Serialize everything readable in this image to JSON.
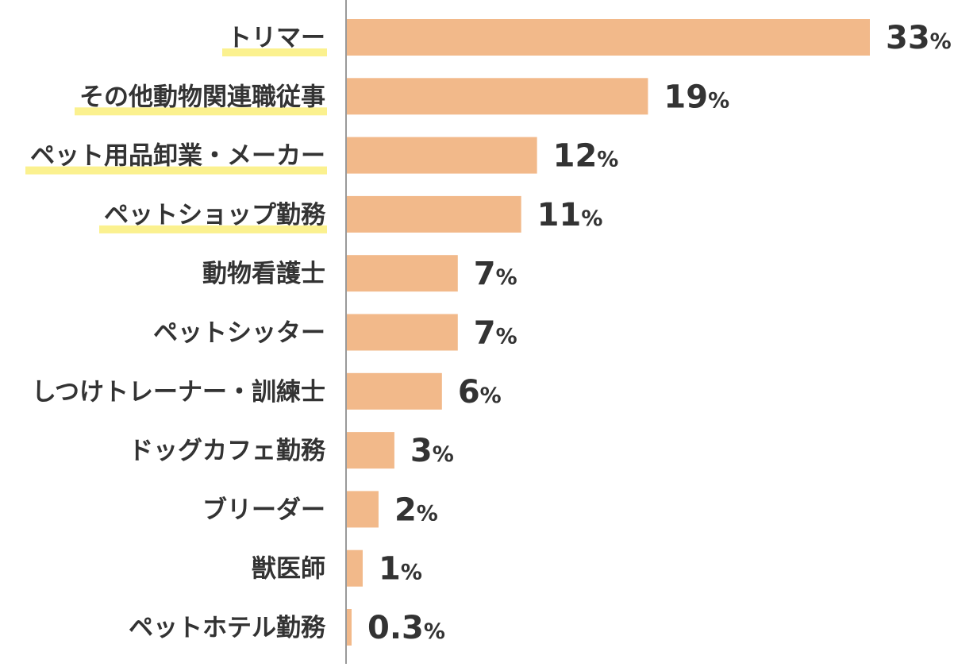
{
  "chart_data": {
    "type": "bar",
    "orientation": "horizontal",
    "categories": [
      "トリマー",
      "その他動物関連職従事",
      "ペット用品卸業・メーカー",
      "ペットショップ勤務",
      "動物看護士",
      "ペットシッター",
      "しつけトレーナー・訓練士",
      "ドッグカフェ勤務",
      "ブリーダー",
      "獣医師",
      "ペットホテル勤務"
    ],
    "values": [
      33,
      19,
      12,
      11,
      7,
      7,
      6,
      3,
      2,
      1,
      0.3
    ],
    "value_labels": [
      "33",
      "19",
      "12",
      "11",
      "7",
      "7",
      "6",
      "3",
      "2",
      "1",
      "0.3"
    ],
    "unit": "%",
    "highlighted": [
      true,
      true,
      true,
      true,
      false,
      false,
      false,
      false,
      false,
      false,
      false
    ],
    "title": "",
    "xlabel": "",
    "ylabel": "",
    "xlim": [
      0,
      33
    ],
    "grid": false,
    "legend": "none",
    "colors": {
      "bar": "#F2B98A",
      "axis": "#999999",
      "text": "#333333",
      "highlight": "#FBF18F"
    }
  }
}
